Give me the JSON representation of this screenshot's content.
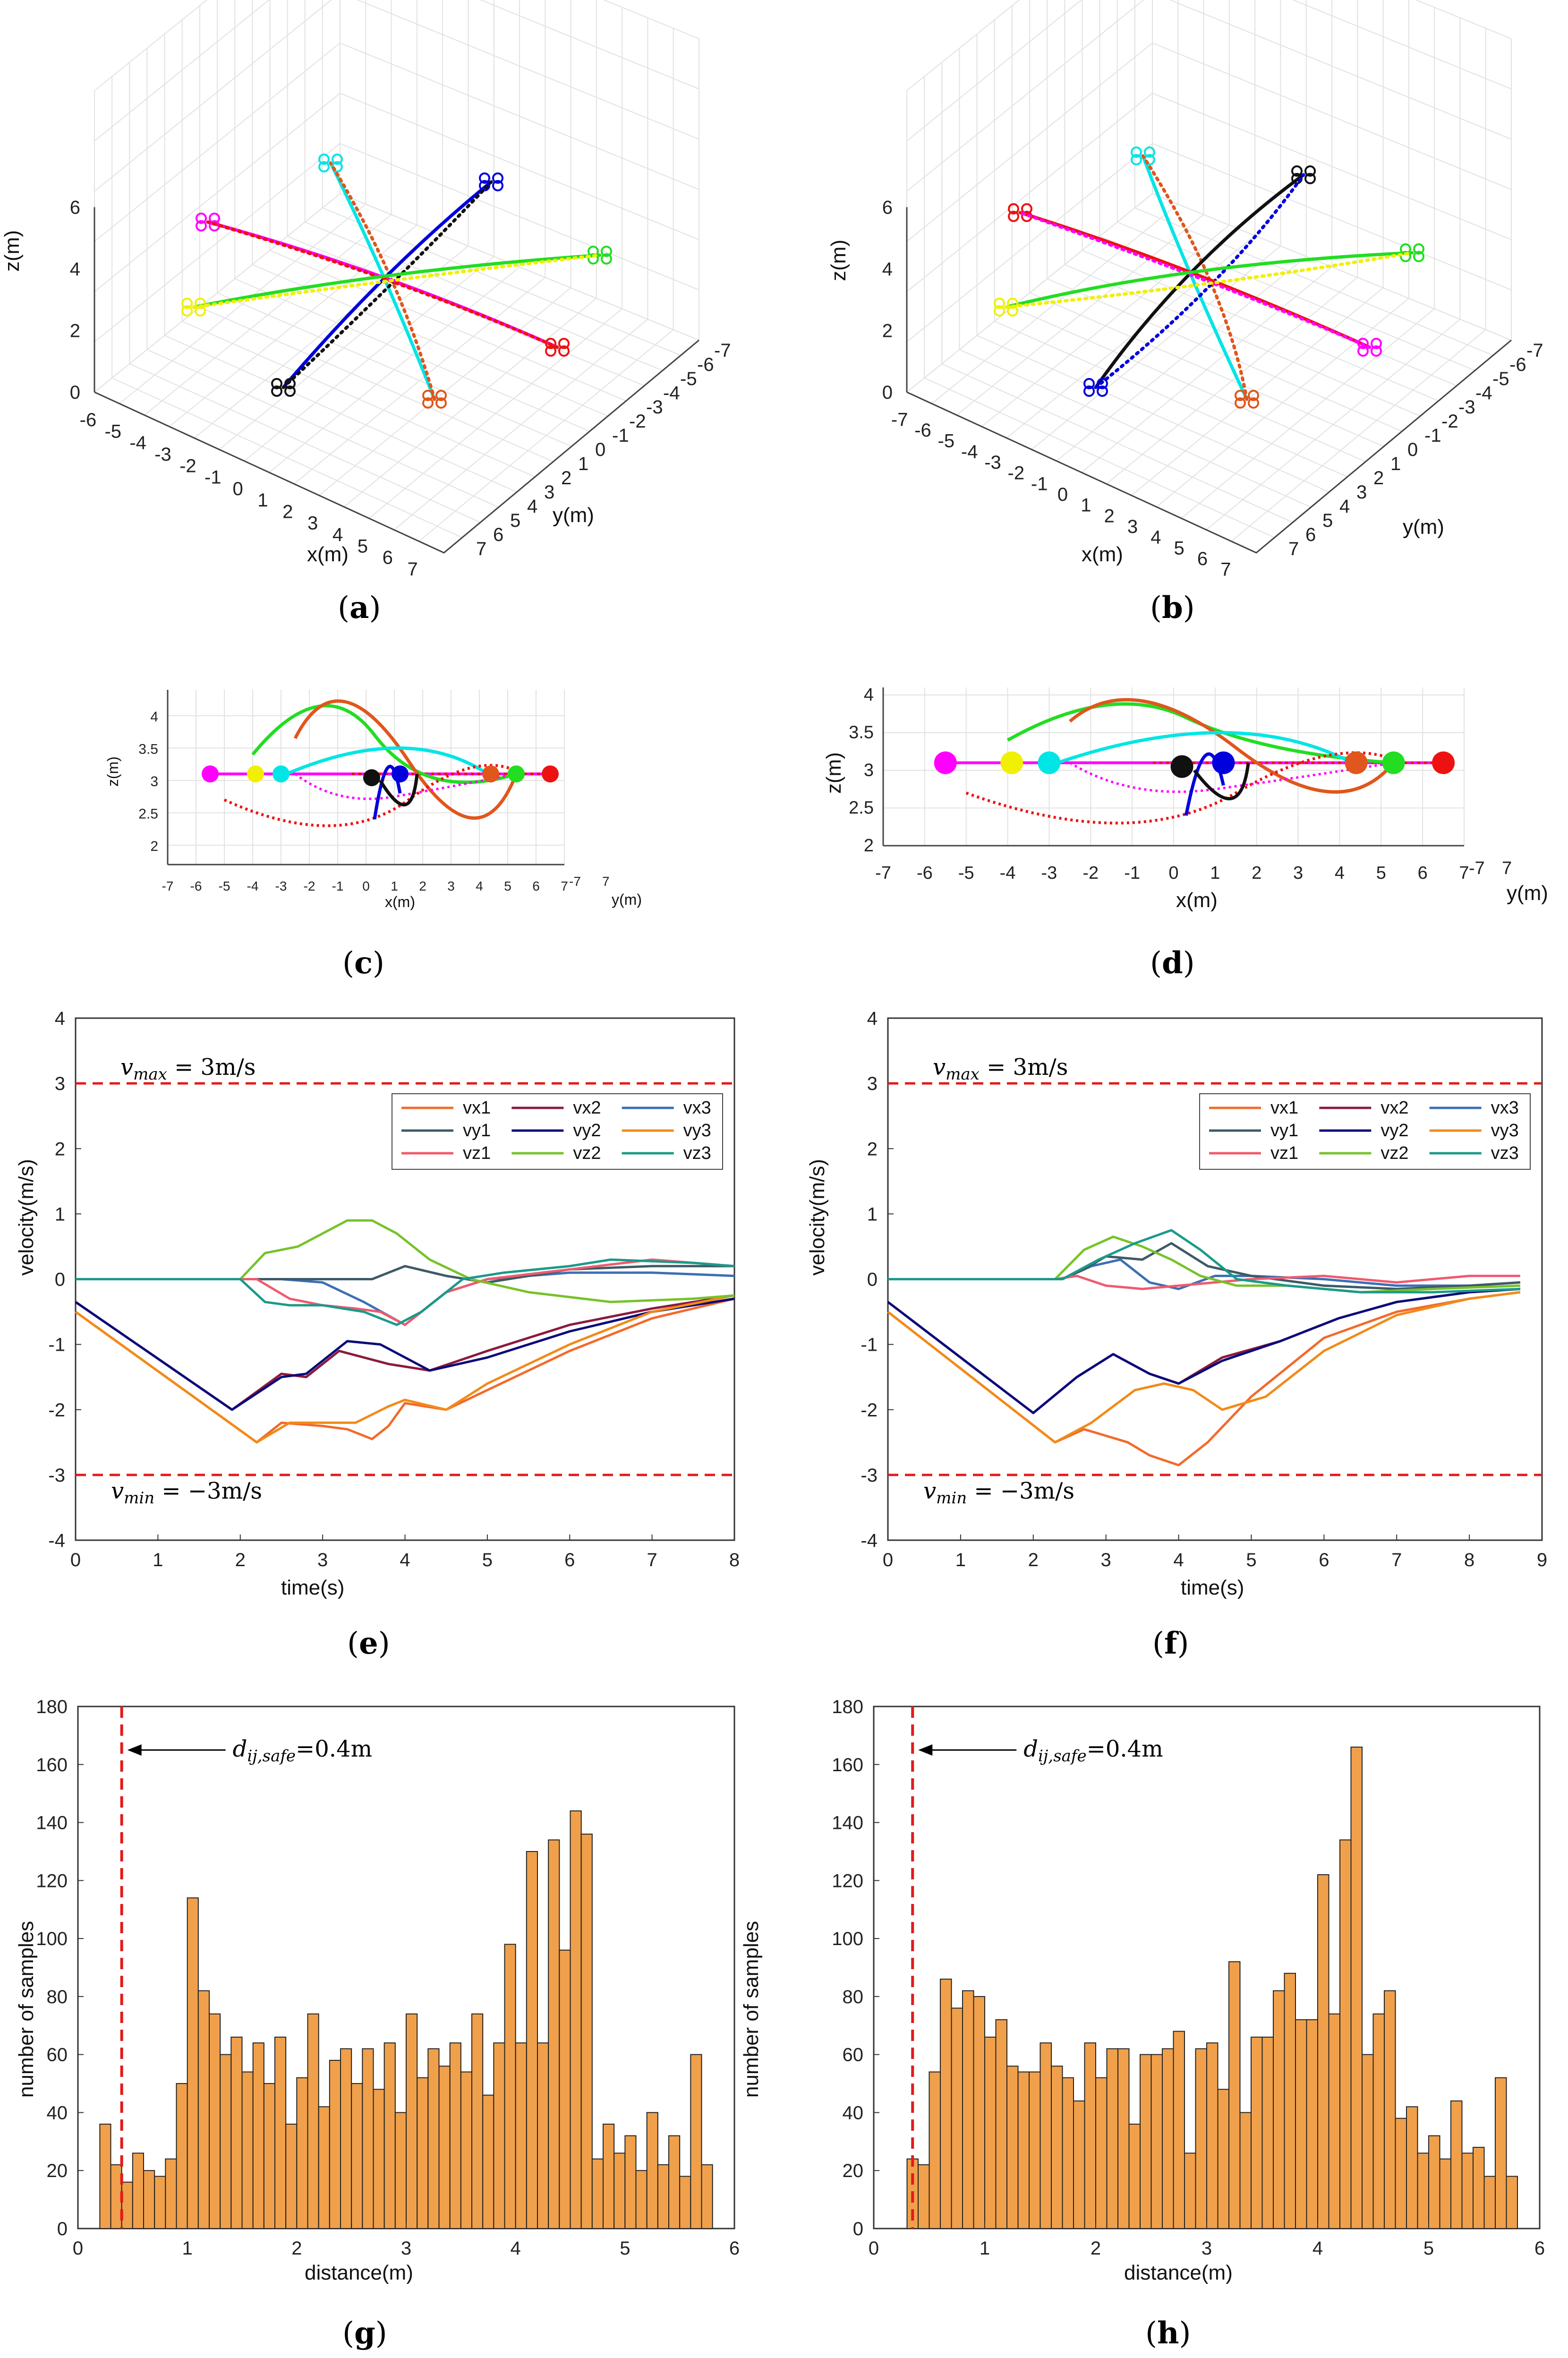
{
  "captions": [
    "a",
    "b",
    "c",
    "d",
    "e",
    "f",
    "g",
    "h"
  ],
  "chart_data": [
    {
      "id": "a",
      "type": "scatter",
      "title": "",
      "xlabel": "x(m)",
      "ylabel": "y(m)",
      "zlabel": "z(m)",
      "xticks": [
        "-6",
        "-5",
        "-4",
        "-3",
        "-2",
        "-1",
        "0",
        "1",
        "2",
        "3",
        "4",
        "5",
        "6",
        "7"
      ],
      "yticks": [
        "-7",
        "-6",
        "-5",
        "-4",
        "-3",
        "-2",
        "-1",
        "0",
        "1",
        "2",
        "3",
        "4",
        "5",
        "6",
        "7"
      ],
      "zticks": [
        "0",
        "2",
        "4",
        "6"
      ],
      "series": [
        {
          "name": "cyan",
          "color": "#00e5e5"
        },
        {
          "name": "blue",
          "color": "#0000dd"
        },
        {
          "name": "black",
          "color": "#111111"
        },
        {
          "name": "orange",
          "color": "#e0561c"
        },
        {
          "name": "magenta",
          "color": "#ff00ff"
        },
        {
          "name": "red",
          "color": "#ee1111"
        },
        {
          "name": "green",
          "color": "#22dd22"
        },
        {
          "name": "yellow",
          "color": "#f0f000"
        }
      ]
    },
    {
      "id": "b",
      "type": "scatter",
      "xlabel": "x(m)",
      "ylabel": "y(m)",
      "zlabel": "z(m)",
      "xticks": [
        "-7",
        "-6",
        "-5",
        "-4",
        "-3",
        "-2",
        "-1",
        "0",
        "1",
        "2",
        "3",
        "4",
        "5",
        "6",
        "7"
      ],
      "yticks": [
        "-7",
        "-6",
        "-5",
        "-4",
        "-3",
        "-2",
        "-1",
        "0",
        "1",
        "2",
        "3",
        "4",
        "5",
        "6",
        "7"
      ],
      "zticks": [
        "0",
        "2",
        "4",
        "6"
      ]
    },
    {
      "id": "c",
      "type": "scatter",
      "xlabel": "x(m)",
      "ylabel": "y(m)",
      "zlabel": "z(m)",
      "xticks": [
        "-7",
        "-6",
        "-5",
        "-4",
        "-3",
        "-2",
        "-1",
        "0",
        "1",
        "2",
        "3",
        "4",
        "5",
        "6",
        "7"
      ],
      "yticks": [
        "-7",
        "7"
      ],
      "zticks": [
        "2",
        "2.5",
        "3",
        "3.5",
        "4"
      ]
    },
    {
      "id": "d",
      "type": "scatter",
      "xlabel": "x(m)",
      "ylabel": "y(m)",
      "zlabel": "z(m)",
      "xticks": [
        "-7",
        "-6",
        "-5",
        "-4",
        "-3",
        "-2",
        "-1",
        "0",
        "1",
        "2",
        "3",
        "4",
        "5",
        "6",
        "7"
      ],
      "yticks": [
        "-7",
        "7"
      ],
      "zticks": [
        "2",
        "2.5",
        "3",
        "3.5",
        "4"
      ]
    },
    {
      "id": "e",
      "type": "line",
      "xlabel": "time(s)",
      "ylabel": "velocity(m/s)",
      "xlim": [
        0,
        8
      ],
      "ylim": [
        -4,
        4
      ],
      "xticks": [
        "0",
        "1",
        "2",
        "3",
        "4",
        "5",
        "6",
        "7",
        "8"
      ],
      "yticks": [
        "-4",
        "-3",
        "-2",
        "-1",
        "0",
        "1",
        "2",
        "3",
        "4"
      ],
      "vmax_label": "v",
      "vmax_sub": "max",
      "vmax_eq": " = 3m/s",
      "vmax": 3,
      "vmin_label": "v",
      "vmin_sub": "min",
      "vmin_eq": " = −3m/s",
      "vmin": -3,
      "legend": [
        "vx1",
        "vx2",
        "vx3",
        "vy1",
        "vy2",
        "vy3",
        "vz1",
        "vz2",
        "vz3"
      ],
      "series": [
        {
          "name": "vx1",
          "color": "#f26a2b",
          "t": [
            0,
            2.2,
            2.5,
            3.0,
            3.3,
            3.6,
            3.8,
            4.0,
            4.5,
            5,
            6,
            7,
            8
          ],
          "v": [
            -0.5,
            -2.5,
            -2.2,
            -2.25,
            -2.3,
            -2.45,
            -2.25,
            -1.9,
            -2.0,
            -1.7,
            -1.1,
            -0.6,
            -0.3
          ]
        },
        {
          "name": "vx2",
          "color": "#8b1a3d",
          "t": [
            0,
            1.9,
            2.5,
            2.8,
            3.2,
            3.8,
            4.3,
            5,
            6,
            7,
            8
          ],
          "v": [
            -0.35,
            -2.0,
            -1.45,
            -1.5,
            -1.1,
            -1.3,
            -1.4,
            -1.1,
            -0.7,
            -0.45,
            -0.25
          ]
        },
        {
          "name": "vx3",
          "color": "#3b6fb5",
          "t": [
            0,
            2.5,
            3.0,
            3.5,
            4.0,
            4.5,
            5.0,
            6,
            7,
            8
          ],
          "v": [
            0,
            0,
            -0.05,
            -0.35,
            -0.7,
            -0.2,
            0.0,
            0.1,
            0.1,
            0.05
          ]
        },
        {
          "name": "vy1",
          "color": "#3d5a66",
          "t": [
            0,
            3.0,
            3.6,
            4.0,
            4.5,
            5.0,
            6,
            7,
            8
          ],
          "v": [
            0,
            0,
            0,
            0.2,
            0.05,
            -0.05,
            0.15,
            0.2,
            0.2
          ]
        },
        {
          "name": "vy2",
          "color": "#0b0b7a",
          "t": [
            0,
            1.9,
            2.5,
            2.8,
            3.3,
            3.7,
            4.3,
            5,
            6,
            7,
            8
          ],
          "v": [
            -0.35,
            -2.0,
            -1.5,
            -1.45,
            -0.95,
            -1.0,
            -1.4,
            -1.2,
            -0.8,
            -0.5,
            -0.3
          ]
        },
        {
          "name": "vy3",
          "color": "#f28a18",
          "t": [
            0,
            2.2,
            2.6,
            3.0,
            3.4,
            3.8,
            4.0,
            4.5,
            5,
            6,
            7,
            8
          ],
          "v": [
            -0.5,
            -2.5,
            -2.2,
            -2.2,
            -2.2,
            -1.95,
            -1.85,
            -2.0,
            -1.6,
            -1.0,
            -0.5,
            -0.25
          ]
        },
        {
          "name": "vz1",
          "color": "#f05a6e",
          "t": [
            0,
            2.2,
            2.6,
            3.0,
            3.4,
            3.7,
            4.0,
            4.5,
            5,
            6,
            7,
            8
          ],
          "v": [
            0,
            0,
            -0.3,
            -0.4,
            -0.45,
            -0.5,
            -0.7,
            -0.2,
            0.0,
            0.15,
            0.3,
            0.2
          ]
        },
        {
          "name": "vz2",
          "color": "#77c22a",
          "t": [
            0,
            2.0,
            2.3,
            2.7,
            3.0,
            3.3,
            3.6,
            3.9,
            4.3,
            4.8,
            5.5,
            6.5,
            7.5,
            8
          ],
          "v": [
            0,
            0,
            0.4,
            0.5,
            0.7,
            0.9,
            0.9,
            0.7,
            0.3,
            0,
            -0.2,
            -0.35,
            -0.3,
            -0.25
          ]
        },
        {
          "name": "vz3",
          "color": "#1a9a8a",
          "t": [
            0,
            2.0,
            2.3,
            2.6,
            3.0,
            3.5,
            3.9,
            4.2,
            4.7,
            5.2,
            6,
            6.5,
            7.5,
            8
          ],
          "v": [
            0,
            0,
            -0.35,
            -0.4,
            -0.4,
            -0.5,
            -0.7,
            -0.5,
            0,
            0.1,
            0.2,
            0.3,
            0.25,
            0.2
          ]
        }
      ]
    },
    {
      "id": "f",
      "type": "line",
      "xlabel": "time(s)",
      "ylabel": "velocity(m/s)",
      "xlim": [
        0,
        9
      ],
      "ylim": [
        -4,
        4
      ],
      "xticks": [
        "0",
        "1",
        "2",
        "3",
        "4",
        "5",
        "6",
        "7",
        "8",
        "9"
      ],
      "yticks": [
        "-4",
        "-3",
        "-2",
        "-1",
        "0",
        "1",
        "2",
        "3",
        "4"
      ],
      "vmax_label": "v",
      "vmax_sub": "max",
      "vmax_eq": " = 3m/s",
      "vmax": 3,
      "vmin_label": "v",
      "vmin_sub": "min",
      "vmin_eq": " = −3m/s",
      "vmin": -3,
      "legend": [
        "vx1",
        "vx2",
        "vx3",
        "vy1",
        "vy2",
        "vy3",
        "vz1",
        "vz2",
        "vz3"
      ],
      "series": [
        {
          "name": "vx1",
          "color": "#f26a2b",
          "t": [
            0,
            2.3,
            2.7,
            3.0,
            3.3,
            3.6,
            4.0,
            4.4,
            5.0,
            6.0,
            7.0,
            8.0,
            8.7
          ],
          "v": [
            -0.5,
            -2.5,
            -2.3,
            -2.4,
            -2.5,
            -2.7,
            -2.85,
            -2.5,
            -1.8,
            -0.9,
            -0.5,
            -0.3,
            -0.2
          ]
        },
        {
          "name": "vx2",
          "color": "#8b1a3d",
          "t": [
            0,
            2.0,
            2.6,
            3.1,
            3.6,
            4.0,
            4.6,
            5.4,
            6.2,
            7.0,
            8.0,
            8.7
          ],
          "v": [
            -0.35,
            -2.05,
            -1.5,
            -1.15,
            -1.45,
            -1.6,
            -1.2,
            -0.95,
            -0.6,
            -0.35,
            -0.2,
            -0.15
          ]
        },
        {
          "name": "vx3",
          "color": "#3b6fb5",
          "t": [
            0,
            2.4,
            2.8,
            3.2,
            3.6,
            4.0,
            4.5,
            5.0,
            6,
            7,
            8,
            8.7
          ],
          "v": [
            0,
            0,
            0.2,
            0.3,
            -0.05,
            -0.15,
            0.05,
            0.05,
            0,
            -0.1,
            -0.1,
            -0.05
          ]
        },
        {
          "name": "vy1",
          "color": "#3d5a66",
          "t": [
            0,
            2.4,
            2.7,
            3.0,
            3.5,
            3.9,
            4.4,
            5.0,
            6.0,
            7.0,
            8.0,
            8.7
          ],
          "v": [
            0,
            0,
            0.15,
            0.35,
            0.3,
            0.55,
            0.2,
            0.05,
            -0.1,
            -0.15,
            -0.1,
            -0.05
          ]
        },
        {
          "name": "vy2",
          "color": "#0b0b7a",
          "t": [
            0,
            2.0,
            2.6,
            3.1,
            3.6,
            4.0,
            4.6,
            5.4,
            6.2,
            7.0,
            8.0,
            8.7
          ],
          "v": [
            -0.35,
            -2.05,
            -1.5,
            -1.15,
            -1.45,
            -1.6,
            -1.25,
            -0.95,
            -0.6,
            -0.35,
            -0.2,
            -0.15
          ]
        },
        {
          "name": "vy3",
          "color": "#f28a18",
          "t": [
            0,
            2.3,
            2.8,
            3.4,
            3.8,
            4.2,
            4.6,
            5.2,
            6.0,
            7.0,
            8.0,
            8.7
          ],
          "v": [
            -0.5,
            -2.5,
            -2.2,
            -1.7,
            -1.6,
            -1.7,
            -2.0,
            -1.8,
            -1.1,
            -0.55,
            -0.3,
            -0.2
          ]
        },
        {
          "name": "vz1",
          "color": "#f05a6e",
          "t": [
            0,
            2.3,
            2.6,
            3.0,
            3.5,
            4.0,
            4.5,
            5.0,
            6,
            7,
            8,
            8.7
          ],
          "v": [
            0,
            0,
            0.05,
            -0.1,
            -0.15,
            -0.1,
            -0.05,
            0.0,
            0.05,
            -0.05,
            0.05,
            0.05
          ]
        },
        {
          "name": "vz2",
          "color": "#77c22a",
          "t": [
            0,
            2.3,
            2.7,
            3.1,
            3.5,
            3.9,
            4.3,
            4.8,
            5.5,
            6.5,
            7.5,
            8.7
          ],
          "v": [
            0,
            0,
            0.45,
            0.65,
            0.5,
            0.3,
            0.05,
            -0.1,
            -0.1,
            -0.2,
            -0.15,
            -0.1
          ]
        },
        {
          "name": "vz3",
          "color": "#1a9a8a",
          "t": [
            0,
            2.4,
            2.9,
            3.4,
            3.9,
            4.3,
            4.8,
            5.5,
            6.5,
            7.5,
            8.7
          ],
          "v": [
            0,
            0,
            0.3,
            0.55,
            0.75,
            0.45,
            0.0,
            -0.1,
            -0.2,
            -0.2,
            -0.15
          ]
        }
      ]
    },
    {
      "id": "g",
      "type": "bar",
      "xlabel": "distance(m)",
      "ylabel": "number of samples",
      "xlim": [
        0,
        6
      ],
      "ylim": [
        0,
        180
      ],
      "xticks": [
        "0",
        "1",
        "2",
        "3",
        "4",
        "5",
        "6"
      ],
      "yticks": [
        "0",
        "20",
        "40",
        "60",
        "80",
        "100",
        "120",
        "140",
        "160",
        "180"
      ],
      "bin_start": 0.2,
      "bin_width": 0.1,
      "safe_distance": 0.4,
      "safe_label_d": "d",
      "safe_label_sub": "ij,safe",
      "safe_label_eq": "=0.4m",
      "values": [
        36,
        22,
        16,
        26,
        20,
        18,
        24,
        50,
        114,
        82,
        74,
        60,
        66,
        54,
        64,
        50,
        66,
        36,
        52,
        74,
        42,
        58,
        62,
        50,
        62,
        48,
        64,
        40,
        74,
        52,
        62,
        56,
        64,
        54,
        74,
        46,
        64,
        98,
        64,
        130,
        64,
        134,
        96,
        144,
        136,
        24,
        36,
        26,
        32,
        20,
        40,
        22,
        32,
        18,
        60,
        22
      ]
    },
    {
      "id": "h",
      "type": "bar",
      "xlabel": "distance(m)",
      "ylabel": "number of samples",
      "xlim": [
        0,
        6
      ],
      "ylim": [
        0,
        180
      ],
      "xticks": [
        "0",
        "1",
        "2",
        "3",
        "4",
        "5",
        "6"
      ],
      "yticks": [
        "0",
        "20",
        "40",
        "60",
        "80",
        "100",
        "120",
        "140",
        "160",
        "180"
      ],
      "bin_start": 0.3,
      "bin_width": 0.1,
      "safe_distance": 0.35,
      "safe_label_d": "d",
      "safe_label_sub": "ij,safe",
      "safe_label_eq": "=0.4m",
      "values": [
        24,
        22,
        54,
        86,
        76,
        82,
        80,
        66,
        72,
        56,
        54,
        54,
        64,
        56,
        52,
        44,
        64,
        52,
        62,
        62,
        36,
        60,
        60,
        62,
        68,
        26,
        62,
        64,
        48,
        92,
        40,
        66,
        66,
        82,
        88,
        72,
        72,
        122,
        74,
        134,
        166,
        60,
        74,
        82,
        38,
        42,
        26,
        32,
        24,
        44,
        26,
        28,
        18,
        52,
        18
      ]
    }
  ]
}
